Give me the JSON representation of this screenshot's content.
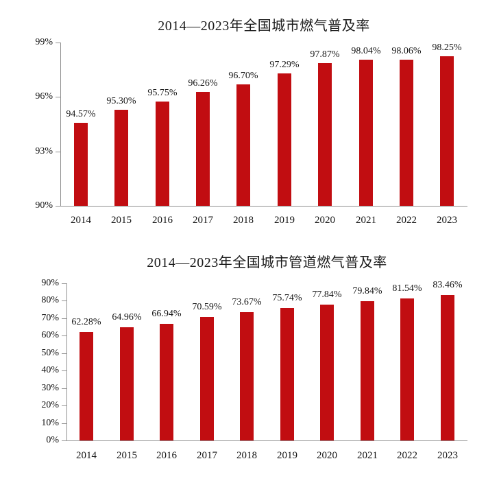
{
  "page": {
    "background": "#ffffff",
    "text_color": "#141414",
    "axis_color": "#8f8f8f"
  },
  "chart_data": [
    {
      "type": "bar",
      "title": "2014—2023年全国城市燃气普及率",
      "categories": [
        "2014",
        "2015",
        "2016",
        "2017",
        "2018",
        "2019",
        "2020",
        "2021",
        "2022",
        "2023"
      ],
      "values": [
        94.57,
        95.3,
        95.75,
        96.26,
        96.7,
        97.29,
        97.87,
        98.04,
        98.06,
        98.25
      ],
      "value_labels": [
        "94.57%",
        "95.30%",
        "95.75%",
        "96.26%",
        "96.70%",
        "97.29%",
        "97.87%",
        "98.04%",
        "98.06%",
        "98.25%"
      ],
      "ylabel": "",
      "xlabel": "",
      "ylim": [
        90,
        99
      ],
      "ytick_step": 3,
      "ytick_labels": [
        "99%",
        "96%",
        "93%",
        "90%"
      ],
      "bar_color": "#c10d11",
      "grid": false,
      "legend_position": "none"
    },
    {
      "type": "bar",
      "title": "2014—2023年全国城市管道燃气普及率",
      "categories": [
        "2014",
        "2015",
        "2016",
        "2017",
        "2018",
        "2019",
        "2020",
        "2021",
        "2022",
        "2023"
      ],
      "values": [
        62.28,
        64.96,
        66.94,
        70.59,
        73.67,
        75.74,
        77.84,
        79.84,
        81.54,
        83.46
      ],
      "value_labels": [
        "62.28%",
        "64.96%",
        "66.94%",
        "70.59%",
        "73.67%",
        "75.74%",
        "77.84%",
        "79.84%",
        "81.54%",
        "83.46%"
      ],
      "ylabel": "",
      "xlabel": "",
      "ylim": [
        0,
        90
      ],
      "ytick_step": 10,
      "ytick_labels": [
        "90%",
        "80%",
        "70%",
        "60%",
        "50%",
        "40%",
        "30%",
        "20%",
        "10%",
        "0%"
      ],
      "bar_color": "#c10d11",
      "grid": false,
      "legend_position": "none"
    }
  ]
}
